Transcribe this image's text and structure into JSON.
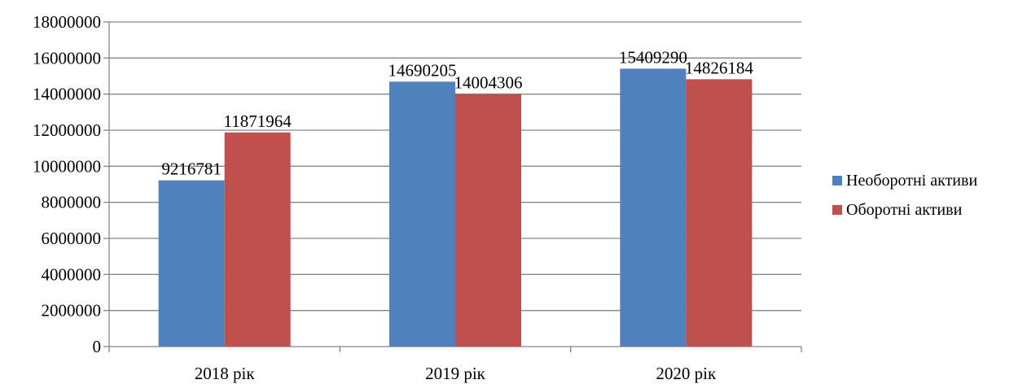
{
  "colors": {
    "series_1": "#4f81bd",
    "series_2": "#c0504d",
    "gridline": "#868686",
    "axis": "#868686"
  },
  "chart_data": {
    "type": "bar",
    "categories": [
      "2018 рік",
      "2019 рік",
      "2020 рік"
    ],
    "series": [
      {
        "name": "Необоротні активи",
        "values": [
          9216781,
          14690205,
          15409290
        ]
      },
      {
        "name": "Оборотні активи",
        "values": [
          11871964,
          14004306,
          14826184
        ]
      }
    ],
    "y_ticks": [
      "0",
      "2000000",
      "4000000",
      "6000000",
      "8000000",
      "10000000",
      "12000000",
      "14000000",
      "16000000",
      "18000000"
    ],
    "ylim": [
      0,
      18000000
    ],
    "grid": true,
    "legend_position": "right",
    "data_labels": true
  }
}
